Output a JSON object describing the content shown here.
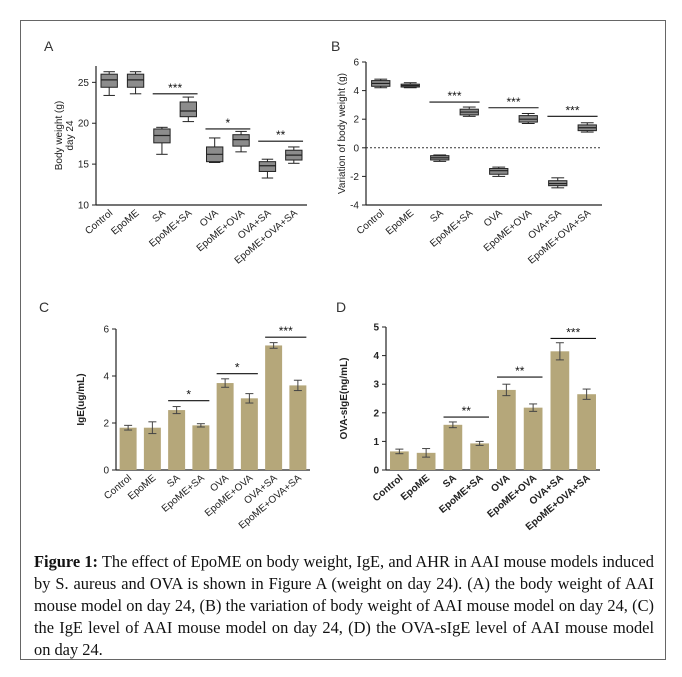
{
  "figure": {
    "caption_label": "Figure 1:",
    "caption_text": "The effect of EpoME on body weight, IgE, and AHR in AAI mouse models induced by S. aureus and OVA is shown in Figure A (weight on day 24). (A) the body weight of AAI mouse model on day 24, (B) the variation of body weight of AAI mouse model on day 24, (C) the IgE level of AAI mouse model on day 24, (D) the OVA-sIgE level of AAI mouse model on day 24."
  },
  "chart_data": [
    {
      "panel": "A",
      "type": "box",
      "ylabel": "Body weight (g)\nday 24",
      "ylim": [
        10,
        27
      ],
      "yticks": [
        10,
        15,
        20,
        25
      ],
      "categories": [
        "Control",
        "EpoME",
        "SA",
        "EpoME+SA",
        "OVA",
        "EpoME+OVA",
        "OVA+SA",
        "EpoME+OVA+SA"
      ],
      "boxes": [
        {
          "min": 23.4,
          "q1": 24.4,
          "median": 25.3,
          "q3": 26.0,
          "max": 26.3
        },
        {
          "min": 23.6,
          "q1": 24.4,
          "median": 25.3,
          "q3": 26.0,
          "max": 26.3
        },
        {
          "min": 16.2,
          "q1": 17.6,
          "median": 18.5,
          "q3": 19.3,
          "max": 19.5
        },
        {
          "min": 20.2,
          "q1": 20.8,
          "median": 21.5,
          "q3": 22.6,
          "max": 23.2
        },
        {
          "min": 15.2,
          "q1": 15.3,
          "median": 16.2,
          "q3": 17.1,
          "max": 18.2
        },
        {
          "min": 16.5,
          "q1": 17.2,
          "median": 18.0,
          "q3": 18.6,
          "max": 19.0
        },
        {
          "min": 13.3,
          "q1": 14.1,
          "median": 14.8,
          "q3": 15.3,
          "max": 15.6
        },
        {
          "min": 15.1,
          "q1": 15.5,
          "median": 16.1,
          "q3": 16.7,
          "max": 17.1
        }
      ],
      "brackets": [
        {
          "from": 2,
          "to": 3,
          "y": 23.6,
          "label": "***"
        },
        {
          "from": 4,
          "to": 5,
          "y": 19.3,
          "label": "*"
        },
        {
          "from": 6,
          "to": 7,
          "y": 17.8,
          "label": "**"
        }
      ],
      "colors": {
        "box": "#8c8c8c",
        "stroke": "#222222"
      }
    },
    {
      "panel": "B",
      "type": "box",
      "ylabel": "Variation of body weight (g)",
      "ylim": [
        -4,
        6
      ],
      "yticks": [
        -4,
        -2,
        0,
        2,
        4,
        6
      ],
      "reference_line": 0,
      "categories": [
        "Control",
        "EpoME",
        "SA",
        "EpoME+SA",
        "OVA",
        "EpoME+OVA",
        "OVA+SA",
        "EpoME+OVA+SA"
      ],
      "boxes": [
        {
          "min": 4.2,
          "q1": 4.3,
          "median": 4.5,
          "q3": 4.7,
          "max": 4.8
        },
        {
          "min": 4.2,
          "q1": 4.25,
          "median": 4.35,
          "q3": 4.45,
          "max": 4.55
        },
        {
          "min": -0.95,
          "q1": -0.85,
          "median": -0.7,
          "q3": -0.55,
          "max": -0.5
        },
        {
          "min": 2.2,
          "q1": 2.3,
          "median": 2.5,
          "q3": 2.7,
          "max": 2.85
        },
        {
          "min": -2.0,
          "q1": -1.85,
          "median": -1.6,
          "q3": -1.45,
          "max": -1.35
        },
        {
          "min": 1.7,
          "q1": 1.8,
          "median": 2.0,
          "q3": 2.25,
          "max": 2.4
        },
        {
          "min": -2.8,
          "q1": -2.65,
          "median": -2.5,
          "q3": -2.3,
          "max": -2.1
        },
        {
          "min": 1.1,
          "q1": 1.2,
          "median": 1.4,
          "q3": 1.6,
          "max": 1.75
        }
      ],
      "brackets": [
        {
          "from": 2,
          "to": 3,
          "y": 3.2,
          "label": "***"
        },
        {
          "from": 4,
          "to": 5,
          "y": 2.8,
          "label": "***"
        },
        {
          "from": 6,
          "to": 7,
          "y": 2.2,
          "label": "***"
        }
      ],
      "colors": {
        "box": "#8c8c8c",
        "stroke": "#222222"
      }
    },
    {
      "panel": "C",
      "type": "bar",
      "ylabel": "IgE(ug/mL)",
      "ylim": [
        0,
        6
      ],
      "yticks": [
        0,
        2,
        4,
        6
      ],
      "categories": [
        "Control",
        "EpoME",
        "SA",
        "EpoME+SA",
        "OVA",
        "EpoME+OVA",
        "OVA+SA",
        "EpoME+OVA+SA"
      ],
      "values": [
        1.8,
        1.8,
        2.55,
        1.9,
        3.7,
        3.05,
        5.3,
        3.6
      ],
      "errors": [
        0.1,
        0.25,
        0.15,
        0.07,
        0.18,
        0.2,
        0.12,
        0.22
      ],
      "brackets": [
        {
          "from": 2,
          "to": 3,
          "y": 2.95,
          "label": "*"
        },
        {
          "from": 4,
          "to": 5,
          "y": 4.1,
          "label": "*"
        },
        {
          "from": 6,
          "to": 7,
          "y": 5.65,
          "label": "***"
        }
      ],
      "colors": {
        "bar": "#b5a77a",
        "stroke": "#444444"
      }
    },
    {
      "panel": "D",
      "type": "bar",
      "ylabel": "OVA-sIgE(ng/mL)",
      "ylim": [
        0,
        5
      ],
      "yticks": [
        0,
        1,
        2,
        3,
        4,
        5
      ],
      "categories": [
        "Control",
        "EpoME",
        "SA",
        "EpoME+SA",
        "OVA",
        "EpoME+OVA",
        "OVA+SA",
        "EpoME+OVA+SA"
      ],
      "values": [
        0.65,
        0.6,
        1.58,
        0.93,
        2.8,
        2.18,
        4.15,
        2.65
      ],
      "errors": [
        0.08,
        0.15,
        0.1,
        0.07,
        0.2,
        0.13,
        0.3,
        0.18
      ],
      "brackets": [
        {
          "from": 2,
          "to": 3,
          "y": 1.85,
          "label": "**"
        },
        {
          "from": 4,
          "to": 5,
          "y": 3.25,
          "label": "**"
        },
        {
          "from": 6,
          "to": 7,
          "y": 4.6,
          "label": "***"
        }
      ],
      "colors": {
        "bar": "#b5a77a",
        "stroke": "#444444"
      }
    }
  ]
}
